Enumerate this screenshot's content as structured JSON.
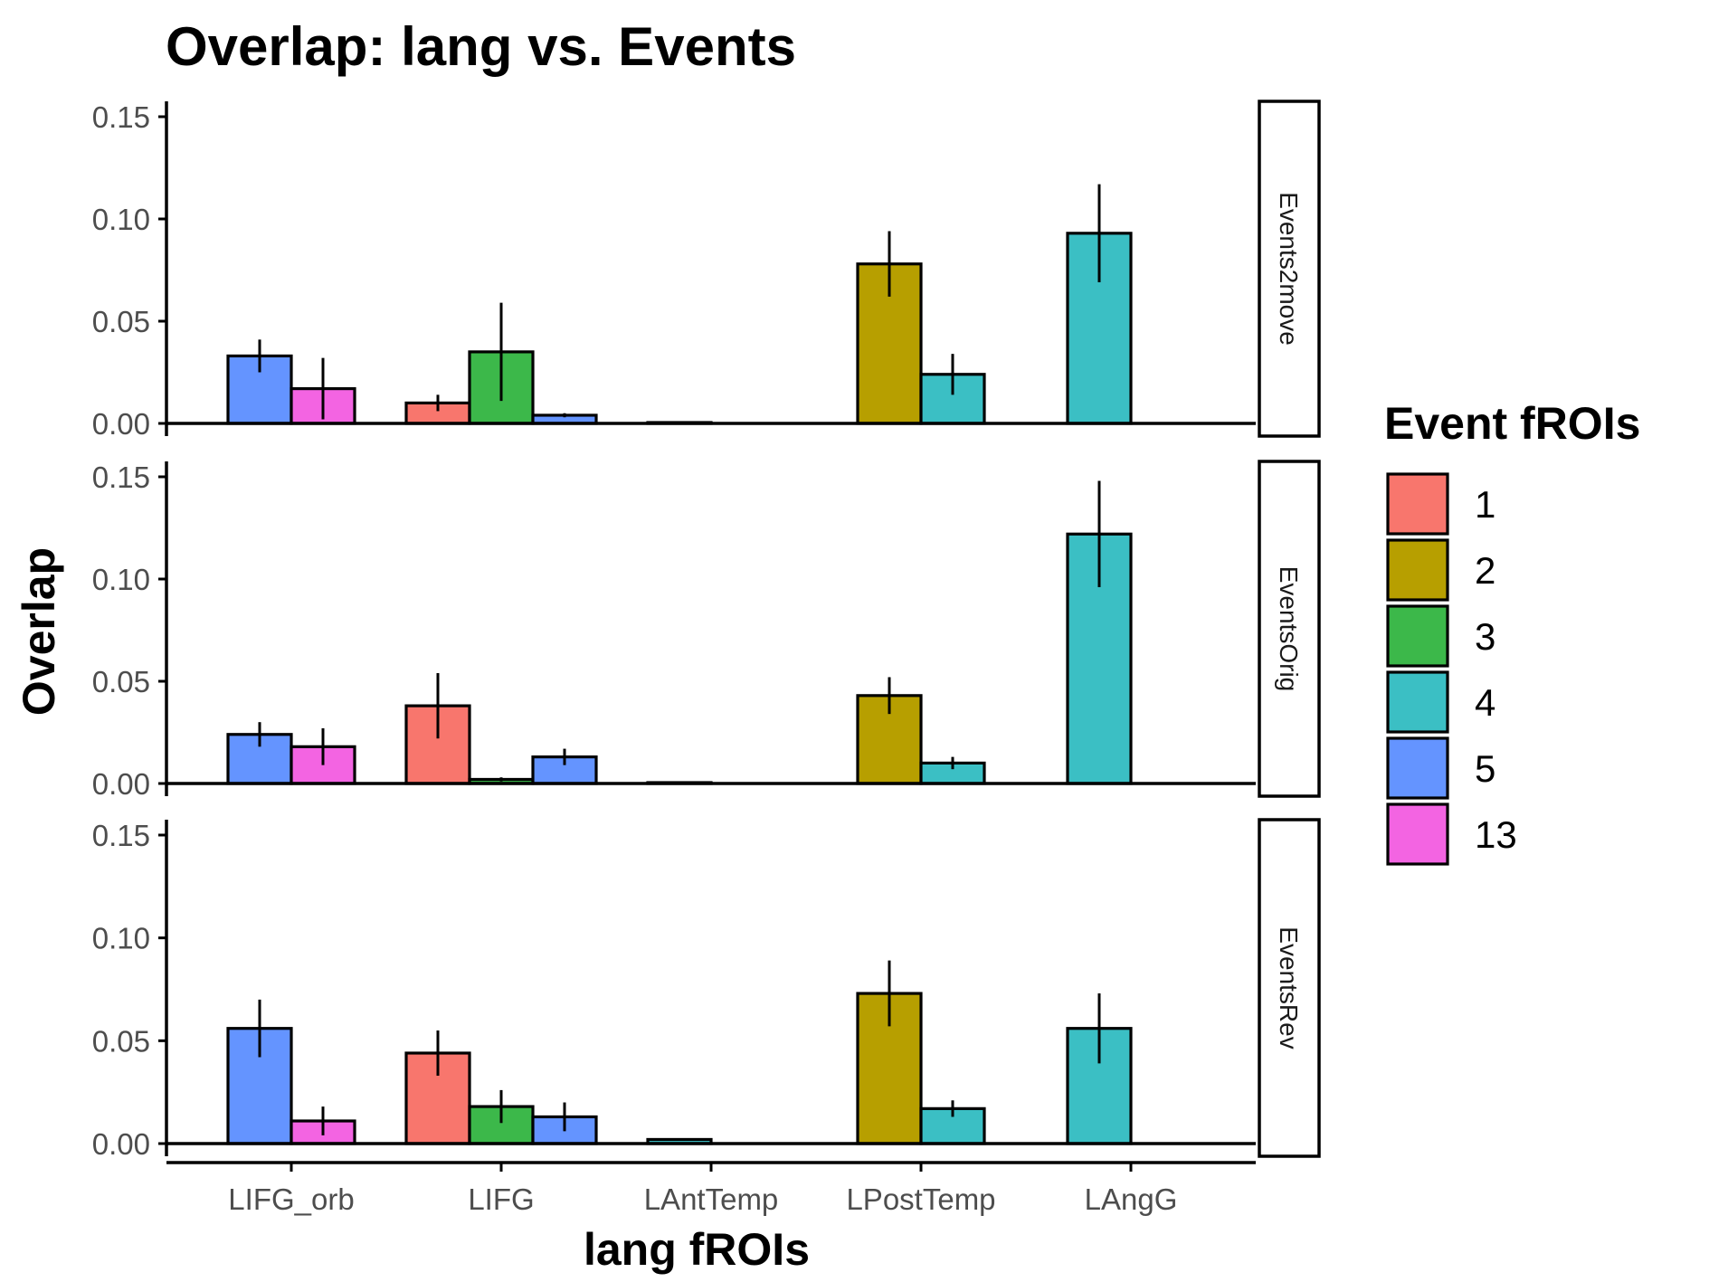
{
  "chart_data": {
    "type": "bar",
    "title": "Overlap: lang vs. Events",
    "xlabel": "lang fROIs",
    "ylabel": "Overlap",
    "categories": [
      "LIFG_orb",
      "LIFG",
      "LAntTemp",
      "LPostTemp",
      "LAngG"
    ],
    "ylim": [
      0,
      0.15
    ],
    "yticks": [
      "0.00",
      "0.05",
      "0.10",
      "0.15"
    ],
    "legend": {
      "title": "Event fROIs",
      "position": "right",
      "items": [
        {
          "label": "1",
          "color": "#F8766D"
        },
        {
          "label": "2",
          "color": "#B79F00"
        },
        {
          "label": "3",
          "color": "#3CB84A"
        },
        {
          "label": "4",
          "color": "#3BBFC4"
        },
        {
          "label": "5",
          "color": "#6494FF"
        },
        {
          "label": "13",
          "color": "#F364E2"
        }
      ]
    },
    "facets": [
      {
        "name": "Events2move",
        "bars": [
          {
            "category": "LIFG_orb",
            "group": "5",
            "value": 0.033,
            "err": 0.008
          },
          {
            "category": "LIFG_orb",
            "group": "13",
            "value": 0.017,
            "err": 0.015
          },
          {
            "category": "LIFG",
            "group": "1",
            "value": 0.01,
            "err": 0.004
          },
          {
            "category": "LIFG",
            "group": "3",
            "value": 0.035,
            "err": 0.024
          },
          {
            "category": "LIFG",
            "group": "5",
            "value": 0.004,
            "err": 0.001
          },
          {
            "category": "LAntTemp",
            "group": "4",
            "value": 0.0003,
            "err": 0.0002
          },
          {
            "category": "LPostTemp",
            "group": "2",
            "value": 0.078,
            "err": 0.016
          },
          {
            "category": "LPostTemp",
            "group": "4",
            "value": 0.024,
            "err": 0.01
          },
          {
            "category": "LAngG",
            "group": "4",
            "value": 0.093,
            "err": 0.024
          }
        ]
      },
      {
        "name": "EventsOrig",
        "bars": [
          {
            "category": "LIFG_orb",
            "group": "5",
            "value": 0.024,
            "err": 0.006
          },
          {
            "category": "LIFG_orb",
            "group": "13",
            "value": 0.018,
            "err": 0.009
          },
          {
            "category": "LIFG",
            "group": "1",
            "value": 0.038,
            "err": 0.016
          },
          {
            "category": "LIFG",
            "group": "3",
            "value": 0.002,
            "err": 0.001
          },
          {
            "category": "LIFG",
            "group": "5",
            "value": 0.013,
            "err": 0.004
          },
          {
            "category": "LAntTemp",
            "group": "4",
            "value": 0.0003,
            "err": 0.0002
          },
          {
            "category": "LPostTemp",
            "group": "2",
            "value": 0.043,
            "err": 0.009
          },
          {
            "category": "LPostTemp",
            "group": "4",
            "value": 0.01,
            "err": 0.003
          },
          {
            "category": "LAngG",
            "group": "4",
            "value": 0.122,
            "err": 0.026
          }
        ]
      },
      {
        "name": "EventsRev",
        "bars": [
          {
            "category": "LIFG_orb",
            "group": "5",
            "value": 0.056,
            "err": 0.014
          },
          {
            "category": "LIFG_orb",
            "group": "13",
            "value": 0.011,
            "err": 0.007
          },
          {
            "category": "LIFG",
            "group": "1",
            "value": 0.044,
            "err": 0.011
          },
          {
            "category": "LIFG",
            "group": "3",
            "value": 0.018,
            "err": 0.008
          },
          {
            "category": "LIFG",
            "group": "5",
            "value": 0.013,
            "err": 0.007
          },
          {
            "category": "LAntTemp",
            "group": "4",
            "value": 0.002,
            "err": 0.0005
          },
          {
            "category": "LPostTemp",
            "group": "2",
            "value": 0.073,
            "err": 0.016
          },
          {
            "category": "LPostTemp",
            "group": "4",
            "value": 0.017,
            "err": 0.004
          },
          {
            "category": "LAngG",
            "group": "4",
            "value": 0.056,
            "err": 0.017
          }
        ]
      }
    ]
  }
}
